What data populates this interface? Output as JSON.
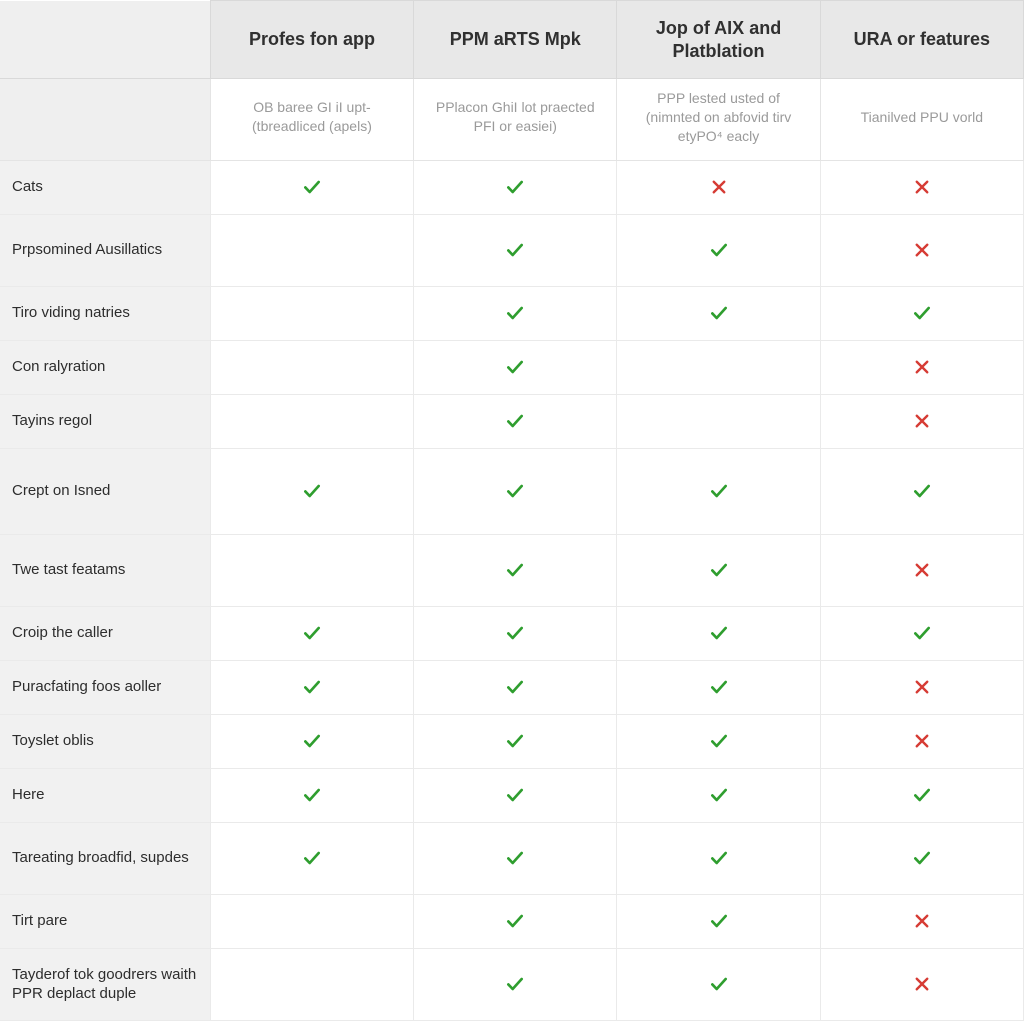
{
  "table": {
    "type": "comparison-table",
    "colors": {
      "header_bg": "#e8e8e8",
      "label_col_bg": "#f1f1f1",
      "border": "#e4e4e4",
      "header_text": "#303030",
      "subheader_text": "#9a9a9a",
      "row_label_text": "#2d2d2d",
      "check": "#2f9e2f",
      "cross": "#d63b34",
      "background": "#ffffff"
    },
    "fonts": {
      "header_size_pt": 14,
      "subheader_size_pt": 10,
      "row_label_size_pt": 11
    },
    "columns": [
      {
        "key": "label",
        "header": "",
        "sub": ""
      },
      {
        "key": "c1",
        "header": "Profes fon app",
        "sub": "OB baree GI iI upt- (tbreadliced (apels)"
      },
      {
        "key": "c2",
        "header": "PPM aRTS Mpk",
        "sub": "PPlacon GhiI lot praected PFI or easiei)"
      },
      {
        "key": "c3",
        "header": "Jop of AIX and Platblation",
        "sub": "PPP lested usted of (nimnted on abfovid tirv etyPO⁴ eacly"
      },
      {
        "key": "c4",
        "header": "URA or features",
        "sub": "Tianilved PPU vorld"
      }
    ],
    "rows": [
      {
        "label": "Cats",
        "cells": [
          "check",
          "check",
          "cross",
          "cross"
        ],
        "size": ""
      },
      {
        "label": "Prpsomined Ausillatics",
        "cells": [
          "",
          "check",
          "check",
          "cross"
        ],
        "size": "tall"
      },
      {
        "label": "Tiro viding natries",
        "cells": [
          "",
          "check",
          "check",
          "check"
        ],
        "size": ""
      },
      {
        "label": "Con ralyration",
        "cells": [
          "",
          "check",
          "",
          "cross"
        ],
        "size": ""
      },
      {
        "label": "Tayins regol",
        "cells": [
          "",
          "check",
          "",
          "cross"
        ],
        "size": ""
      },
      {
        "label": "Crept on Isned",
        "cells": [
          "check",
          "check",
          "check",
          "check"
        ],
        "size": "xtall"
      },
      {
        "label": "Twe tast featams",
        "cells": [
          "",
          "check",
          "check",
          "cross"
        ],
        "size": "tall"
      },
      {
        "label": "Croip the caller",
        "cells": [
          "check",
          "check",
          "check",
          "check"
        ],
        "size": ""
      },
      {
        "label": "Puracfating foos aoller",
        "cells": [
          "check",
          "check",
          "check",
          "cross"
        ],
        "size": ""
      },
      {
        "label": "Toyslet oblis",
        "cells": [
          "check",
          "check",
          "check",
          "cross"
        ],
        "size": ""
      },
      {
        "label": "Here",
        "cells": [
          "check",
          "check",
          "check",
          "check"
        ],
        "size": ""
      },
      {
        "label": "Tareating broadfid, supdes",
        "cells": [
          "check",
          "check",
          "check",
          "check"
        ],
        "size": "tall"
      },
      {
        "label": "Tirt pare",
        "cells": [
          "",
          "check",
          "check",
          "cross"
        ],
        "size": ""
      },
      {
        "label": "Tayderof tok goodrers waith PPR deplact duple",
        "cells": [
          "",
          "check",
          "check",
          "cross"
        ],
        "size": "tall"
      }
    ]
  }
}
